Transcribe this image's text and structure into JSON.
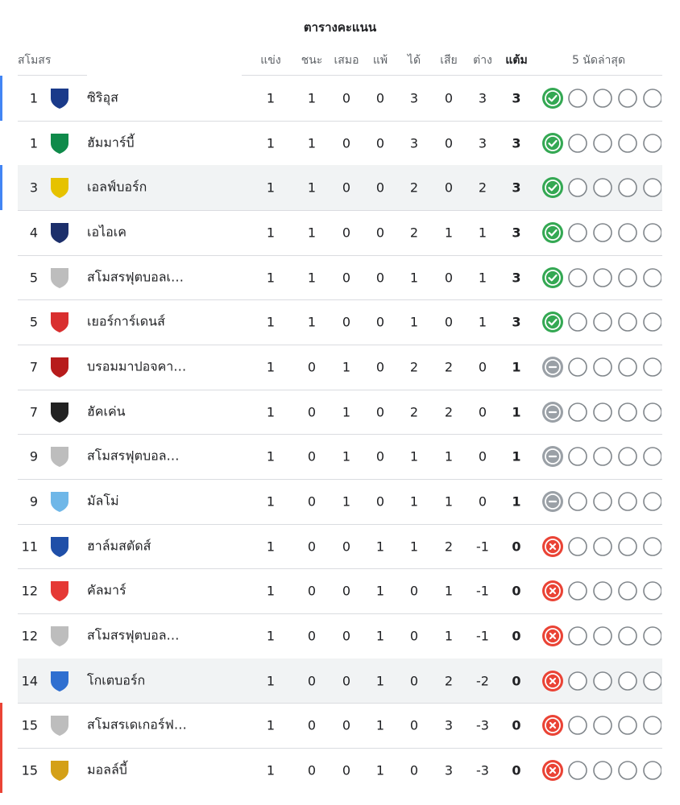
{
  "header": {
    "title": "ตารางคะแนน"
  },
  "table": {
    "columns": {
      "team": "สโมสร",
      "played": "แข่ง",
      "won": "ชนะ",
      "drawn": "เสมอ",
      "lost": "แพ้",
      "goals_for": "ได้",
      "goals_against": "เสีย",
      "goal_difference": "ต่าง",
      "points": "แต้ม",
      "form": "5 นัดล่าสุด"
    },
    "rows": [
      {
        "rank": 1,
        "team": "ซิริอุส",
        "played": 1,
        "won": 1,
        "drawn": 0,
        "lost": 0,
        "goals_for": 3,
        "goals_against": 0,
        "goal_difference": 3,
        "points": 3,
        "marker_color": "#4285f4",
        "crest_color": "#1a3a8a"
      },
      {
        "rank": 1,
        "team": "ฮัมมาร์บี้",
        "played": 1,
        "won": 1,
        "drawn": 0,
        "lost": 0,
        "goals_for": 3,
        "goals_against": 0,
        "goal_difference": 3,
        "points": 3,
        "crest_color": "#0f8a4a"
      },
      {
        "rank": 3,
        "team": "เอลฟ์บอร์ก",
        "played": 1,
        "won": 1,
        "drawn": 0,
        "lost": 0,
        "goals_for": 2,
        "goals_against": 0,
        "goal_difference": 2,
        "points": 3,
        "marker_color": "#4285f4",
        "background": "#f1f3f4",
        "crest_color": "#e6c200"
      },
      {
        "rank": 4,
        "team": "เอไอเค",
        "played": 1,
        "won": 1,
        "drawn": 0,
        "lost": 0,
        "goals_for": 2,
        "goals_against": 1,
        "goal_difference": 1,
        "points": 3,
        "crest_color": "#1c2f6b"
      },
      {
        "rank": 5,
        "team": "สโมสรฟุตบอลเ…",
        "played": 1,
        "won": 1,
        "drawn": 0,
        "lost": 0,
        "goals_for": 1,
        "goals_against": 0,
        "goal_difference": 1,
        "points": 3,
        "crest_color": "#bdbdbd"
      },
      {
        "rank": 5,
        "team": "เยอร์การ์เดนส์",
        "played": 1,
        "won": 1,
        "drawn": 0,
        "lost": 0,
        "goals_for": 1,
        "goals_against": 0,
        "goal_difference": 1,
        "points": 3,
        "crest_color": "#d92f2f"
      },
      {
        "rank": 7,
        "team": "บรอมมาปอจคา…",
        "played": 1,
        "won": 0,
        "drawn": 1,
        "lost": 0,
        "goals_for": 2,
        "goals_against": 2,
        "goal_difference": 0,
        "points": 1,
        "crest_color": "#b71c1c"
      },
      {
        "rank": 7,
        "team": "ฮัคเค่น",
        "played": 1,
        "won": 0,
        "drawn": 1,
        "lost": 0,
        "goals_for": 2,
        "goals_against": 2,
        "goal_difference": 0,
        "points": 1,
        "crest_color": "#222222"
      },
      {
        "rank": 9,
        "team": "สโมสรฟุตบอล…",
        "played": 1,
        "won": 0,
        "drawn": 1,
        "lost": 0,
        "goals_for": 1,
        "goals_against": 1,
        "goal_difference": 0,
        "points": 1,
        "crest_color": "#bdbdbd"
      },
      {
        "rank": 9,
        "team": "มัลโม่",
        "played": 1,
        "won": 0,
        "drawn": 1,
        "lost": 0,
        "goals_for": 1,
        "goals_against": 1,
        "goal_difference": 0,
        "points": 1,
        "crest_color": "#6fb7e8"
      },
      {
        "rank": 11,
        "team": "ฮาล์มสตัดส์",
        "played": 1,
        "won": 0,
        "drawn": 0,
        "lost": 1,
        "goals_for": 1,
        "goals_against": 2,
        "goal_difference": -1,
        "points": 0,
        "crest_color": "#1f4fa8"
      },
      {
        "rank": 12,
        "team": "คัลมาร์",
        "played": 1,
        "won": 0,
        "drawn": 0,
        "lost": 1,
        "goals_for": 0,
        "goals_against": 1,
        "goal_difference": -1,
        "points": 0,
        "crest_color": "#e53935"
      },
      {
        "rank": 12,
        "team": "สโมสรฟุตบอล…",
        "played": 1,
        "won": 0,
        "drawn": 0,
        "lost": 1,
        "goals_for": 0,
        "goals_against": 1,
        "goal_difference": -1,
        "points": 0,
        "crest_color": "#bdbdbd"
      },
      {
        "rank": 14,
        "team": "โกเตบอร์ก",
        "played": 1,
        "won": 0,
        "drawn": 0,
        "lost": 1,
        "goals_for": 0,
        "goals_against": 2,
        "goal_difference": -2,
        "points": 0,
        "background": "#f1f3f4",
        "crest_color": "#2f6fd0"
      },
      {
        "rank": 15,
        "team": "สโมสรเดเกอร์ฟ…",
        "played": 1,
        "won": 0,
        "drawn": 0,
        "lost": 1,
        "goals_for": 0,
        "goals_against": 3,
        "goal_difference": -3,
        "points": 0,
        "marker_color": "#ea4335",
        "crest_color": "#bdbdbd"
      },
      {
        "rank": 15,
        "team": "มอลล์บี้",
        "played": 1,
        "won": 0,
        "drawn": 0,
        "lost": 1,
        "goals_for": 0,
        "goals_against": 3,
        "goal_difference": -3,
        "points": 0,
        "marker_color": "#ea4335",
        "crest_color": "#d4a017"
      }
    ]
  }
}
